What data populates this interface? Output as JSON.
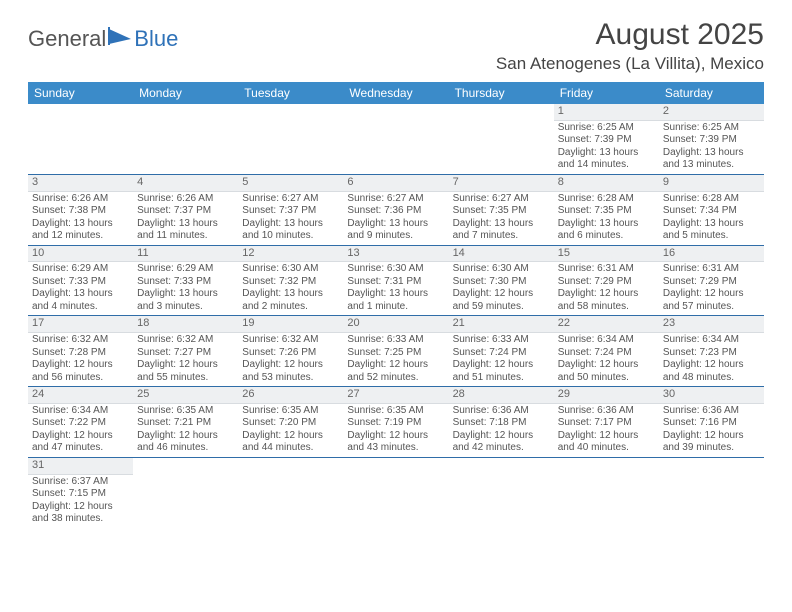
{
  "logo": {
    "part1": "General",
    "part2": "Blue"
  },
  "title": "August 2025",
  "location": "San Atenogenes (La Villita), Mexico",
  "weekdays": [
    "Sunday",
    "Monday",
    "Tuesday",
    "Wednesday",
    "Thursday",
    "Friday",
    "Saturday"
  ],
  "colors": {
    "header_bg": "#3b8bc9",
    "header_text": "#ffffff",
    "row_divider": "#2f6da8",
    "daynum_bg": "#eef0f2",
    "text": "#555555"
  },
  "weeks": [
    [
      {
        "empty": true
      },
      {
        "empty": true
      },
      {
        "empty": true
      },
      {
        "empty": true
      },
      {
        "empty": true
      },
      {
        "n": "1",
        "sr": "Sunrise: 6:25 AM",
        "ss": "Sunset: 7:39 PM",
        "d1": "Daylight: 13 hours",
        "d2": "and 14 minutes."
      },
      {
        "n": "2",
        "sr": "Sunrise: 6:25 AM",
        "ss": "Sunset: 7:39 PM",
        "d1": "Daylight: 13 hours",
        "d2": "and 13 minutes."
      }
    ],
    [
      {
        "n": "3",
        "sr": "Sunrise: 6:26 AM",
        "ss": "Sunset: 7:38 PM",
        "d1": "Daylight: 13 hours",
        "d2": "and 12 minutes."
      },
      {
        "n": "4",
        "sr": "Sunrise: 6:26 AM",
        "ss": "Sunset: 7:37 PM",
        "d1": "Daylight: 13 hours",
        "d2": "and 11 minutes."
      },
      {
        "n": "5",
        "sr": "Sunrise: 6:27 AM",
        "ss": "Sunset: 7:37 PM",
        "d1": "Daylight: 13 hours",
        "d2": "and 10 minutes."
      },
      {
        "n": "6",
        "sr": "Sunrise: 6:27 AM",
        "ss": "Sunset: 7:36 PM",
        "d1": "Daylight: 13 hours",
        "d2": "and 9 minutes."
      },
      {
        "n": "7",
        "sr": "Sunrise: 6:27 AM",
        "ss": "Sunset: 7:35 PM",
        "d1": "Daylight: 13 hours",
        "d2": "and 7 minutes."
      },
      {
        "n": "8",
        "sr": "Sunrise: 6:28 AM",
        "ss": "Sunset: 7:35 PM",
        "d1": "Daylight: 13 hours",
        "d2": "and 6 minutes."
      },
      {
        "n": "9",
        "sr": "Sunrise: 6:28 AM",
        "ss": "Sunset: 7:34 PM",
        "d1": "Daylight: 13 hours",
        "d2": "and 5 minutes."
      }
    ],
    [
      {
        "n": "10",
        "sr": "Sunrise: 6:29 AM",
        "ss": "Sunset: 7:33 PM",
        "d1": "Daylight: 13 hours",
        "d2": "and 4 minutes."
      },
      {
        "n": "11",
        "sr": "Sunrise: 6:29 AM",
        "ss": "Sunset: 7:33 PM",
        "d1": "Daylight: 13 hours",
        "d2": "and 3 minutes."
      },
      {
        "n": "12",
        "sr": "Sunrise: 6:30 AM",
        "ss": "Sunset: 7:32 PM",
        "d1": "Daylight: 13 hours",
        "d2": "and 2 minutes."
      },
      {
        "n": "13",
        "sr": "Sunrise: 6:30 AM",
        "ss": "Sunset: 7:31 PM",
        "d1": "Daylight: 13 hours",
        "d2": "and 1 minute."
      },
      {
        "n": "14",
        "sr": "Sunrise: 6:30 AM",
        "ss": "Sunset: 7:30 PM",
        "d1": "Daylight: 12 hours",
        "d2": "and 59 minutes."
      },
      {
        "n": "15",
        "sr": "Sunrise: 6:31 AM",
        "ss": "Sunset: 7:29 PM",
        "d1": "Daylight: 12 hours",
        "d2": "and 58 minutes."
      },
      {
        "n": "16",
        "sr": "Sunrise: 6:31 AM",
        "ss": "Sunset: 7:29 PM",
        "d1": "Daylight: 12 hours",
        "d2": "and 57 minutes."
      }
    ],
    [
      {
        "n": "17",
        "sr": "Sunrise: 6:32 AM",
        "ss": "Sunset: 7:28 PM",
        "d1": "Daylight: 12 hours",
        "d2": "and 56 minutes."
      },
      {
        "n": "18",
        "sr": "Sunrise: 6:32 AM",
        "ss": "Sunset: 7:27 PM",
        "d1": "Daylight: 12 hours",
        "d2": "and 55 minutes."
      },
      {
        "n": "19",
        "sr": "Sunrise: 6:32 AM",
        "ss": "Sunset: 7:26 PM",
        "d1": "Daylight: 12 hours",
        "d2": "and 53 minutes."
      },
      {
        "n": "20",
        "sr": "Sunrise: 6:33 AM",
        "ss": "Sunset: 7:25 PM",
        "d1": "Daylight: 12 hours",
        "d2": "and 52 minutes."
      },
      {
        "n": "21",
        "sr": "Sunrise: 6:33 AM",
        "ss": "Sunset: 7:24 PM",
        "d1": "Daylight: 12 hours",
        "d2": "and 51 minutes."
      },
      {
        "n": "22",
        "sr": "Sunrise: 6:34 AM",
        "ss": "Sunset: 7:24 PM",
        "d1": "Daylight: 12 hours",
        "d2": "and 50 minutes."
      },
      {
        "n": "23",
        "sr": "Sunrise: 6:34 AM",
        "ss": "Sunset: 7:23 PM",
        "d1": "Daylight: 12 hours",
        "d2": "and 48 minutes."
      }
    ],
    [
      {
        "n": "24",
        "sr": "Sunrise: 6:34 AM",
        "ss": "Sunset: 7:22 PM",
        "d1": "Daylight: 12 hours",
        "d2": "and 47 minutes."
      },
      {
        "n": "25",
        "sr": "Sunrise: 6:35 AM",
        "ss": "Sunset: 7:21 PM",
        "d1": "Daylight: 12 hours",
        "d2": "and 46 minutes."
      },
      {
        "n": "26",
        "sr": "Sunrise: 6:35 AM",
        "ss": "Sunset: 7:20 PM",
        "d1": "Daylight: 12 hours",
        "d2": "and 44 minutes."
      },
      {
        "n": "27",
        "sr": "Sunrise: 6:35 AM",
        "ss": "Sunset: 7:19 PM",
        "d1": "Daylight: 12 hours",
        "d2": "and 43 minutes."
      },
      {
        "n": "28",
        "sr": "Sunrise: 6:36 AM",
        "ss": "Sunset: 7:18 PM",
        "d1": "Daylight: 12 hours",
        "d2": "and 42 minutes."
      },
      {
        "n": "29",
        "sr": "Sunrise: 6:36 AM",
        "ss": "Sunset: 7:17 PM",
        "d1": "Daylight: 12 hours",
        "d2": "and 40 minutes."
      },
      {
        "n": "30",
        "sr": "Sunrise: 6:36 AM",
        "ss": "Sunset: 7:16 PM",
        "d1": "Daylight: 12 hours",
        "d2": "and 39 minutes."
      }
    ],
    [
      {
        "n": "31",
        "sr": "Sunrise: 6:37 AM",
        "ss": "Sunset: 7:15 PM",
        "d1": "Daylight: 12 hours",
        "d2": "and 38 minutes."
      },
      {
        "empty": true
      },
      {
        "empty": true
      },
      {
        "empty": true
      },
      {
        "empty": true
      },
      {
        "empty": true
      },
      {
        "empty": true
      }
    ]
  ]
}
